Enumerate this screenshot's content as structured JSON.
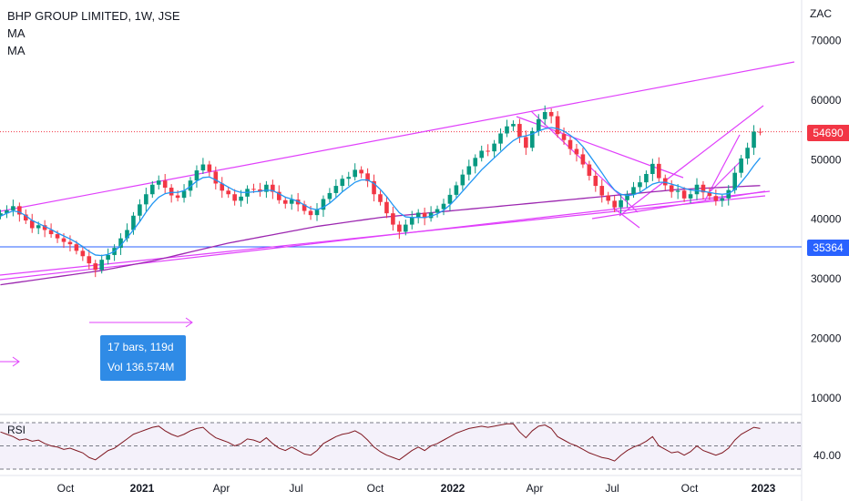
{
  "header": {
    "symbol_line": "BHP GROUP LIMITED, 1W, JSE",
    "indicators": [
      "MA",
      "MA"
    ]
  },
  "currency": "ZAC",
  "last_price": {
    "label": "54690",
    "value": 54690,
    "color": "#f23645"
  },
  "hline": {
    "label": "35364",
    "value": 35364,
    "color": "#2962ff"
  },
  "measure": {
    "line1": "17 bars, 119d",
    "line2": "Vol 136.574M"
  },
  "rsi_pane": {
    "label": "RSI",
    "level_label": "40.00"
  },
  "colors": {
    "up": "#089981",
    "down": "#f23645",
    "channel": "#e040fb",
    "ma_fast": "#2196f3",
    "ma_slow": "#9c27b0",
    "rsi": "#801922"
  },
  "chart_data": {
    "type": "candlestick",
    "title": "BHP GROUP LIMITED, 1W, JSE",
    "y_axis": {
      "ticks": [
        10000,
        20000,
        30000,
        40000,
        50000,
        60000,
        70000
      ],
      "unit": "ZAC"
    },
    "x_axis": {
      "ticks": [
        "Oct",
        "2021",
        "Apr",
        "Jul",
        "Oct",
        "2022",
        "Apr",
        "Jul",
        "Oct",
        "2023"
      ]
    },
    "rsi_axis": {
      "ticks": [
        40.0
      ]
    },
    "closes": [
      41000,
      41500,
      42200,
      40800,
      39800,
      38500,
      39000,
      38200,
      37500,
      36800,
      36200,
      35800,
      34700,
      33800,
      32600,
      31500,
      33200,
      34000,
      35200,
      36800,
      38200,
      40600,
      42500,
      44200,
      45800,
      46500,
      45300,
      44000,
      43600,
      44800,
      46500,
      48200,
      49200,
      48000,
      46000,
      44800,
      44200,
      43100,
      43800,
      45100,
      45000,
      44600,
      45800,
      44600,
      43200,
      42600,
      43300,
      42500,
      41400,
      40700,
      41600,
      43400,
      44400,
      45600,
      46800,
      47100,
      48300,
      47700,
      46400,
      44200,
      42900,
      41000,
      39100,
      37900,
      39100,
      40300,
      41100,
      40200,
      41100,
      41700,
      42600,
      44100,
      45700,
      47500,
      48900,
      50300,
      51500,
      51400,
      52700,
      54400,
      55600,
      56000,
      53800,
      52000,
      54800,
      56800,
      58000,
      57300,
      54300,
      53300,
      51800,
      50900,
      49200,
      47300,
      45600,
      44000,
      43100,
      42000,
      43200,
      44200,
      45400,
      46200,
      47600,
      49300,
      46900,
      45700,
      44600,
      44800,
      43500,
      44200,
      45800,
      44500,
      43900,
      43100,
      43500,
      44900,
      47800,
      50200,
      52000,
      54700,
      54690
    ],
    "ma_fast": [
      40500,
      41000,
      41400,
      41200,
      40600,
      39800,
      39300,
      38800,
      38300,
      37700,
      37200,
      36700,
      36100,
      35400,
      34600,
      34000,
      33900,
      34100,
      34600,
      35600,
      36900,
      38200,
      39600,
      41200,
      42600,
      43700,
      44300,
      44500,
      44500,
      44800,
      45500,
      46400,
      47000,
      47100,
      46600,
      46000,
      45400,
      44800,
      44500,
      44500,
      44600,
      44700,
      44900,
      44800,
      44300,
      43700,
      43400,
      43000,
      42400,
      41800,
      41600,
      42000,
      42700,
      43600,
      44600,
      45400,
      46200,
      46600,
      46600,
      46000,
      45000,
      43800,
      42400,
      41100,
      40400,
      40300,
      40300,
      40300,
      40500,
      40900,
      41500,
      42400,
      43500,
      44700,
      45900,
      47100,
      48300,
      49300,
      50300,
      51300,
      52300,
      53200,
      53800,
      54000,
      54300,
      54800,
      55200,
      55400,
      55200,
      54800,
      54100,
      53300,
      52200,
      50800,
      49300,
      47800,
      46200,
      44900,
      44200,
      44000,
      44100,
      44500,
      45200,
      45900,
      46200,
      46200,
      45900,
      45600,
      45200,
      44900,
      44800,
      44700,
      44500,
      44300,
      44200,
      44300,
      45000,
      46200,
      47500,
      49000,
      50300
    ],
    "ma_slow": [
      29000,
      29150,
      29300,
      29450,
      29600,
      29750,
      29900,
      30050,
      30200,
      30350,
      30500,
      30650,
      30800,
      30950,
      31100,
      31250,
      31400,
      31600,
      31800,
      32000,
      32200,
      32400,
      32600,
      32800,
      33000,
      33250,
      33500,
      33750,
      34000,
      34250,
      34500,
      34750,
      35000,
      35250,
      35500,
      35750,
      36000,
      36200,
      36400,
      36600,
      36800,
      37000,
      37200,
      37400,
      37600,
      37800,
      38000,
      38200,
      38400,
      38600,
      38800,
      38950,
      39100,
      39250,
      39400,
      39550,
      39700,
      39850,
      40000,
      40150,
      40300,
      40400,
      40500,
      40600,
      40700,
      40800,
      40900,
      41000,
      41100,
      41200,
      41300,
      41400,
      41500,
      41600,
      41700,
      41800,
      41900,
      42000,
      42100,
      42200,
      42300,
      42400,
      42500,
      42600,
      42700,
      42800,
      42900,
      43000,
      43100,
      43200,
      43300,
      43400,
      43500,
      43600,
      43700,
      43800,
      43900,
      44000,
      44100,
      44200,
      44300,
      44400,
      44500,
      44600,
      44700,
      44800,
      44900,
      45000,
      45050,
      45100,
      45150,
      45200,
      45250,
      45300,
      45350,
      45400,
      45450,
      45500,
      45550,
      45600,
      45650
    ],
    "rsi": [
      62,
      60,
      58,
      55,
      56,
      54,
      55,
      52,
      50,
      49,
      47,
      48,
      46,
      44,
      40,
      38,
      42,
      46,
      48,
      52,
      56,
      60,
      62,
      64,
      66,
      67,
      63,
      60,
      58,
      60,
      63,
      65,
      66,
      61,
      57,
      55,
      53,
      50,
      52,
      56,
      55,
      53,
      57,
      52,
      48,
      46,
      49,
      46,
      43,
      42,
      46,
      52,
      55,
      58,
      60,
      61,
      63,
      60,
      55,
      49,
      45,
      42,
      40,
      38,
      42,
      46,
      49,
      46,
      50,
      52,
      55,
      58,
      61,
      63,
      65,
      66,
      67,
      66,
      67,
      68,
      69,
      69,
      62,
      57,
      63,
      67,
      68,
      65,
      58,
      55,
      52,
      50,
      47,
      44,
      42,
      40,
      39,
      37,
      42,
      46,
      49,
      51,
      54,
      58,
      50,
      47,
      44,
      45,
      42,
      45,
      50,
      46,
      44,
      42,
      44,
      48,
      55,
      60,
      63,
      66,
      65
    ]
  }
}
